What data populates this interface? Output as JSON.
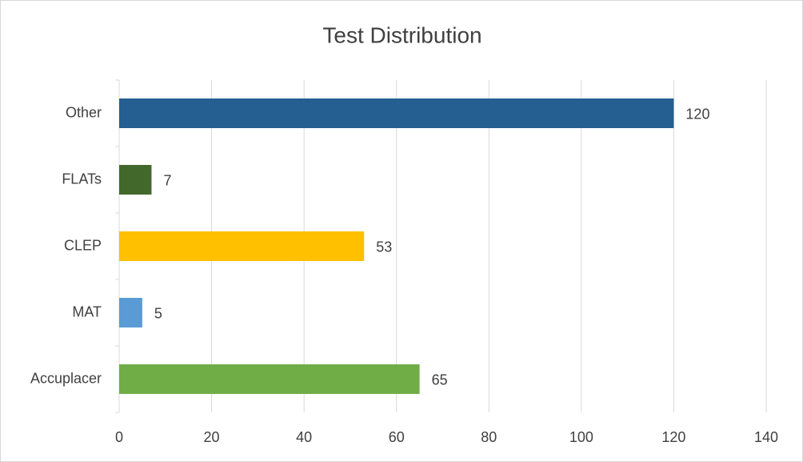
{
  "chart_data": {
    "type": "bar",
    "orientation": "horizontal",
    "title": "Test Distribution",
    "categories": [
      "Accuplacer",
      "MAT",
      "CLEP",
      "FLATs",
      "Other"
    ],
    "values": [
      65,
      5,
      53,
      7,
      120
    ],
    "colors": [
      "#70ad47",
      "#5b9bd5",
      "#ffc000",
      "#43682b",
      "#255e91"
    ],
    "xlim": [
      0,
      140
    ],
    "xticks": [
      0,
      20,
      40,
      60,
      80,
      100,
      120,
      140
    ],
    "grid": true
  }
}
